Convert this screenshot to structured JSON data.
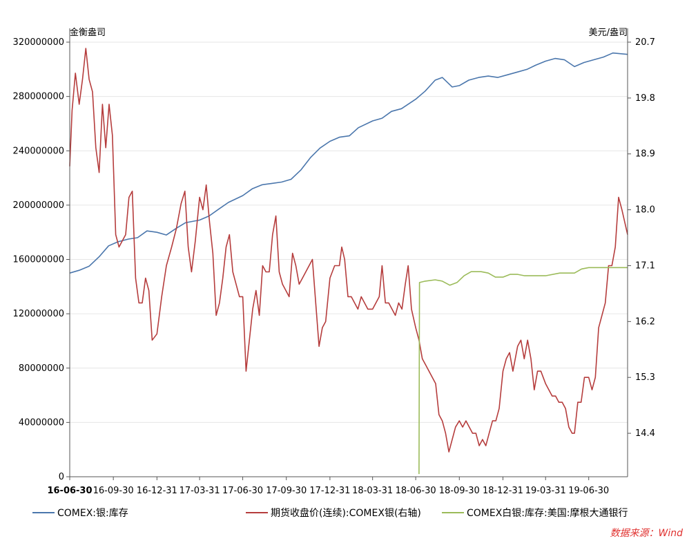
{
  "chart_data": {
    "type": "line",
    "left_axis_unit": "金衡盎司",
    "right_axis_unit": "美元/盎司",
    "source_note": "数据来源：Wind",
    "left_ylim": [
      0,
      320000000
    ],
    "left_ticks": [
      "0",
      "40000000",
      "80000000",
      "120000000",
      "160000000",
      "200000000",
      "240000000",
      "280000000",
      "320000000"
    ],
    "right_ylim": [
      13.7,
      20.7
    ],
    "right_ticks": [
      "14.4",
      "15.3",
      "16.2",
      "17.1",
      "18.0",
      "18.9",
      "19.8",
      "20.7"
    ],
    "x_ticks": [
      "16-06-30",
      "16-09-30",
      "16-12-31",
      "17-03-31",
      "17-06-30",
      "17-09-30",
      "17-12-31",
      "18-03-31",
      "18-06-30",
      "18-09-30",
      "18-12-31",
      "19-03-31",
      "19-06-30"
    ],
    "x_range": [
      "2016-06-30",
      "2019-09-20"
    ],
    "grid": "horizontal",
    "legend_position": "bottom",
    "series": [
      {
        "name": "COMEX:银:库存",
        "axis": "left",
        "color": "#4a76ac",
        "points": [
          [
            "2016-06-30",
            150000000
          ],
          [
            "2016-07-20",
            152000000
          ],
          [
            "2016-08-10",
            155000000
          ],
          [
            "2016-08-31",
            162000000
          ],
          [
            "2016-09-20",
            170000000
          ],
          [
            "2016-10-10",
            173000000
          ],
          [
            "2016-11-01",
            175000000
          ],
          [
            "2016-11-20",
            176000000
          ],
          [
            "2016-12-10",
            181000000
          ],
          [
            "2016-12-31",
            180000000
          ],
          [
            "2017-01-20",
            178000000
          ],
          [
            "2017-02-10",
            183000000
          ],
          [
            "2017-03-01",
            187000000
          ],
          [
            "2017-03-31",
            189000000
          ],
          [
            "2017-04-20",
            192000000
          ],
          [
            "2017-05-10",
            197000000
          ],
          [
            "2017-05-31",
            202000000
          ],
          [
            "2017-06-30",
            207000000
          ],
          [
            "2017-07-20",
            212000000
          ],
          [
            "2017-08-10",
            215000000
          ],
          [
            "2017-08-31",
            216000000
          ],
          [
            "2017-09-20",
            217000000
          ],
          [
            "2017-10-10",
            219000000
          ],
          [
            "2017-10-31",
            226000000
          ],
          [
            "2017-11-20",
            235000000
          ],
          [
            "2017-12-10",
            242000000
          ],
          [
            "2017-12-31",
            247000000
          ],
          [
            "2018-01-20",
            250000000
          ],
          [
            "2018-02-10",
            251000000
          ],
          [
            "2018-03-01",
            257000000
          ],
          [
            "2018-03-31",
            262000000
          ],
          [
            "2018-04-20",
            264000000
          ],
          [
            "2018-05-10",
            269000000
          ],
          [
            "2018-05-31",
            271000000
          ],
          [
            "2018-06-30",
            278000000
          ],
          [
            "2018-07-20",
            284000000
          ],
          [
            "2018-08-10",
            292000000
          ],
          [
            "2018-08-25",
            294000000
          ],
          [
            "2018-09-15",
            287000000
          ],
          [
            "2018-09-30",
            288000000
          ],
          [
            "2018-10-20",
            292000000
          ],
          [
            "2018-11-10",
            294000000
          ],
          [
            "2018-11-30",
            295000000
          ],
          [
            "2018-12-20",
            294000000
          ],
          [
            "2019-01-10",
            296000000
          ],
          [
            "2019-01-31",
            298000000
          ],
          [
            "2019-02-20",
            300000000
          ],
          [
            "2019-03-10",
            303000000
          ],
          [
            "2019-03-31",
            306000000
          ],
          [
            "2019-04-20",
            308000000
          ],
          [
            "2019-05-10",
            307000000
          ],
          [
            "2019-05-31",
            302000000
          ],
          [
            "2019-06-20",
            305000000
          ],
          [
            "2019-07-10",
            307000000
          ],
          [
            "2019-07-31",
            309000000
          ],
          [
            "2019-08-20",
            312000000
          ],
          [
            "2019-09-20",
            311000000
          ]
        ]
      },
      {
        "name": "期货收盘价(连续):COMEX银(右轴)",
        "axis": "right",
        "color": "#b53c3c",
        "points": [
          [
            "2016-06-30",
            18.7
          ],
          [
            "2016-07-05",
            19.6
          ],
          [
            "2016-07-12",
            20.2
          ],
          [
            "2016-07-20",
            19.7
          ],
          [
            "2016-07-27",
            20.1
          ],
          [
            "2016-08-03",
            20.6
          ],
          [
            "2016-08-10",
            20.1
          ],
          [
            "2016-08-17",
            19.9
          ],
          [
            "2016-08-24",
            19.0
          ],
          [
            "2016-08-31",
            18.6
          ],
          [
            "2016-09-07",
            19.7
          ],
          [
            "2016-09-14",
            19.0
          ],
          [
            "2016-09-21",
            19.7
          ],
          [
            "2016-09-28",
            19.2
          ],
          [
            "2016-10-05",
            17.6
          ],
          [
            "2016-10-12",
            17.4
          ],
          [
            "2016-10-19",
            17.5
          ],
          [
            "2016-10-26",
            17.6
          ],
          [
            "2016-11-02",
            18.2
          ],
          [
            "2016-11-09",
            18.3
          ],
          [
            "2016-11-16",
            16.9
          ],
          [
            "2016-11-23",
            16.5
          ],
          [
            "2016-11-30",
            16.5
          ],
          [
            "2016-12-07",
            16.9
          ],
          [
            "2016-12-14",
            16.7
          ],
          [
            "2016-12-21",
            15.9
          ],
          [
            "2016-12-31",
            16.0
          ],
          [
            "2017-01-10",
            16.6
          ],
          [
            "2017-01-20",
            17.1
          ],
          [
            "2017-01-31",
            17.4
          ],
          [
            "2017-02-10",
            17.7
          ],
          [
            "2017-02-20",
            18.1
          ],
          [
            "2017-02-28",
            18.3
          ],
          [
            "2017-03-07",
            17.4
          ],
          [
            "2017-03-14",
            17.0
          ],
          [
            "2017-03-22",
            17.5
          ],
          [
            "2017-03-31",
            18.2
          ],
          [
            "2017-04-07",
            18.0
          ],
          [
            "2017-04-14",
            18.4
          ],
          [
            "2017-04-21",
            17.8
          ],
          [
            "2017-04-28",
            17.3
          ],
          [
            "2017-05-05",
            16.3
          ],
          [
            "2017-05-12",
            16.5
          ],
          [
            "2017-05-19",
            16.9
          ],
          [
            "2017-05-26",
            17.4
          ],
          [
            "2017-06-02",
            17.6
          ],
          [
            "2017-06-09",
            17.0
          ],
          [
            "2017-06-16",
            16.8
          ],
          [
            "2017-06-23",
            16.6
          ],
          [
            "2017-06-30",
            16.6
          ],
          [
            "2017-07-07",
            15.4
          ],
          [
            "2017-07-14",
            15.9
          ],
          [
            "2017-07-21",
            16.4
          ],
          [
            "2017-07-28",
            16.7
          ],
          [
            "2017-08-04",
            16.3
          ],
          [
            "2017-08-11",
            17.1
          ],
          [
            "2017-08-18",
            17.0
          ],
          [
            "2017-08-25",
            17.0
          ],
          [
            "2017-09-01",
            17.6
          ],
          [
            "2017-09-08",
            17.9
          ],
          [
            "2017-09-15",
            17.0
          ],
          [
            "2017-09-22",
            16.8
          ],
          [
            "2017-09-29",
            16.7
          ],
          [
            "2017-10-06",
            16.6
          ],
          [
            "2017-10-13",
            17.3
          ],
          [
            "2017-10-20",
            17.1
          ],
          [
            "2017-10-27",
            16.8
          ],
          [
            "2017-11-03",
            16.9
          ],
          [
            "2017-11-10",
            17.0
          ],
          [
            "2017-11-17",
            17.1
          ],
          [
            "2017-11-24",
            17.2
          ],
          [
            "2017-12-01",
            16.5
          ],
          [
            "2017-12-08",
            15.8
          ],
          [
            "2017-12-15",
            16.1
          ],
          [
            "2017-12-22",
            16.2
          ],
          [
            "2017-12-31",
            16.9
          ],
          [
            "2018-01-10",
            17.1
          ],
          [
            "2018-01-20",
            17.1
          ],
          [
            "2018-01-25",
            17.4
          ],
          [
            "2018-01-31",
            17.2
          ],
          [
            "2018-02-07",
            16.6
          ],
          [
            "2018-02-14",
            16.6
          ],
          [
            "2018-02-21",
            16.5
          ],
          [
            "2018-02-28",
            16.4
          ],
          [
            "2018-03-07",
            16.6
          ],
          [
            "2018-03-14",
            16.5
          ],
          [
            "2018-03-21",
            16.4
          ],
          [
            "2018-03-31",
            16.4
          ],
          [
            "2018-04-07",
            16.5
          ],
          [
            "2018-04-14",
            16.6
          ],
          [
            "2018-04-20",
            17.1
          ],
          [
            "2018-04-27",
            16.5
          ],
          [
            "2018-05-04",
            16.5
          ],
          [
            "2018-05-11",
            16.4
          ],
          [
            "2018-05-18",
            16.3
          ],
          [
            "2018-05-25",
            16.5
          ],
          [
            "2018-06-01",
            16.4
          ],
          [
            "2018-06-08",
            16.8
          ],
          [
            "2018-06-14",
            17.1
          ],
          [
            "2018-06-21",
            16.4
          ],
          [
            "2018-06-30",
            16.1
          ],
          [
            "2018-07-07",
            15.9
          ],
          [
            "2018-07-14",
            15.6
          ],
          [
            "2018-07-21",
            15.5
          ],
          [
            "2018-07-28",
            15.4
          ],
          [
            "2018-08-04",
            15.3
          ],
          [
            "2018-08-11",
            15.2
          ],
          [
            "2018-08-18",
            14.7
          ],
          [
            "2018-08-25",
            14.6
          ],
          [
            "2018-09-01",
            14.4
          ],
          [
            "2018-09-08",
            14.1
          ],
          [
            "2018-09-15",
            14.3
          ],
          [
            "2018-09-22",
            14.5
          ],
          [
            "2018-09-30",
            14.6
          ],
          [
            "2018-10-07",
            14.5
          ],
          [
            "2018-10-14",
            14.6
          ],
          [
            "2018-10-21",
            14.5
          ],
          [
            "2018-10-28",
            14.4
          ],
          [
            "2018-11-04",
            14.4
          ],
          [
            "2018-11-11",
            14.2
          ],
          [
            "2018-11-18",
            14.3
          ],
          [
            "2018-11-25",
            14.2
          ],
          [
            "2018-12-02",
            14.4
          ],
          [
            "2018-12-09",
            14.6
          ],
          [
            "2018-12-16",
            14.6
          ],
          [
            "2018-12-23",
            14.8
          ],
          [
            "2018-12-31",
            15.4
          ],
          [
            "2019-01-07",
            15.6
          ],
          [
            "2019-01-14",
            15.7
          ],
          [
            "2019-01-21",
            15.4
          ],
          [
            "2019-01-31",
            15.8
          ],
          [
            "2019-02-07",
            15.9
          ],
          [
            "2019-02-14",
            15.6
          ],
          [
            "2019-02-21",
            15.9
          ],
          [
            "2019-02-28",
            15.6
          ],
          [
            "2019-03-07",
            15.1
          ],
          [
            "2019-03-14",
            15.4
          ],
          [
            "2019-03-21",
            15.4
          ],
          [
            "2019-03-31",
            15.2
          ],
          [
            "2019-04-07",
            15.1
          ],
          [
            "2019-04-14",
            15.0
          ],
          [
            "2019-04-21",
            15.0
          ],
          [
            "2019-04-28",
            14.9
          ],
          [
            "2019-05-05",
            14.9
          ],
          [
            "2019-05-12",
            14.8
          ],
          [
            "2019-05-19",
            14.5
          ],
          [
            "2019-05-26",
            14.4
          ],
          [
            "2019-05-31",
            14.4
          ],
          [
            "2019-06-07",
            14.9
          ],
          [
            "2019-06-14",
            14.9
          ],
          [
            "2019-06-21",
            15.3
          ],
          [
            "2019-06-30",
            15.3
          ],
          [
            "2019-07-07",
            15.1
          ],
          [
            "2019-07-14",
            15.3
          ],
          [
            "2019-07-21",
            16.1
          ],
          [
            "2019-07-28",
            16.3
          ],
          [
            "2019-08-04",
            16.5
          ],
          [
            "2019-08-11",
            17.1
          ],
          [
            "2019-08-18",
            17.1
          ],
          [
            "2019-08-25",
            17.4
          ],
          [
            "2019-09-01",
            18.2
          ],
          [
            "2019-09-08",
            18.0
          ],
          [
            "2019-09-20",
            17.6
          ]
        ]
      },
      {
        "name": "COMEX白银:库存:美国:摩根大通银行",
        "axis": "left",
        "color": "#9bbb59",
        "points": [
          [
            "2018-07-07",
            2000000
          ],
          [
            "2018-07-08",
            143000000
          ],
          [
            "2018-07-20",
            144000000
          ],
          [
            "2018-08-10",
            145000000
          ],
          [
            "2018-08-25",
            144000000
          ],
          [
            "2018-09-10",
            141000000
          ],
          [
            "2018-09-25",
            143000000
          ],
          [
            "2018-10-10",
            148000000
          ],
          [
            "2018-10-25",
            151000000
          ],
          [
            "2018-11-15",
            151000000
          ],
          [
            "2018-11-30",
            150000000
          ],
          [
            "2018-12-15",
            147000000
          ],
          [
            "2018-12-31",
            147000000
          ],
          [
            "2019-01-15",
            149000000
          ],
          [
            "2019-01-31",
            149000000
          ],
          [
            "2019-02-15",
            148000000
          ],
          [
            "2019-03-01",
            148000000
          ],
          [
            "2019-03-31",
            148000000
          ],
          [
            "2019-04-30",
            150000000
          ],
          [
            "2019-05-31",
            150000000
          ],
          [
            "2019-06-15",
            153000000
          ],
          [
            "2019-06-30",
            154000000
          ],
          [
            "2019-07-31",
            154000000
          ],
          [
            "2019-08-31",
            154000000
          ],
          [
            "2019-09-20",
            154000000
          ]
        ]
      }
    ]
  }
}
